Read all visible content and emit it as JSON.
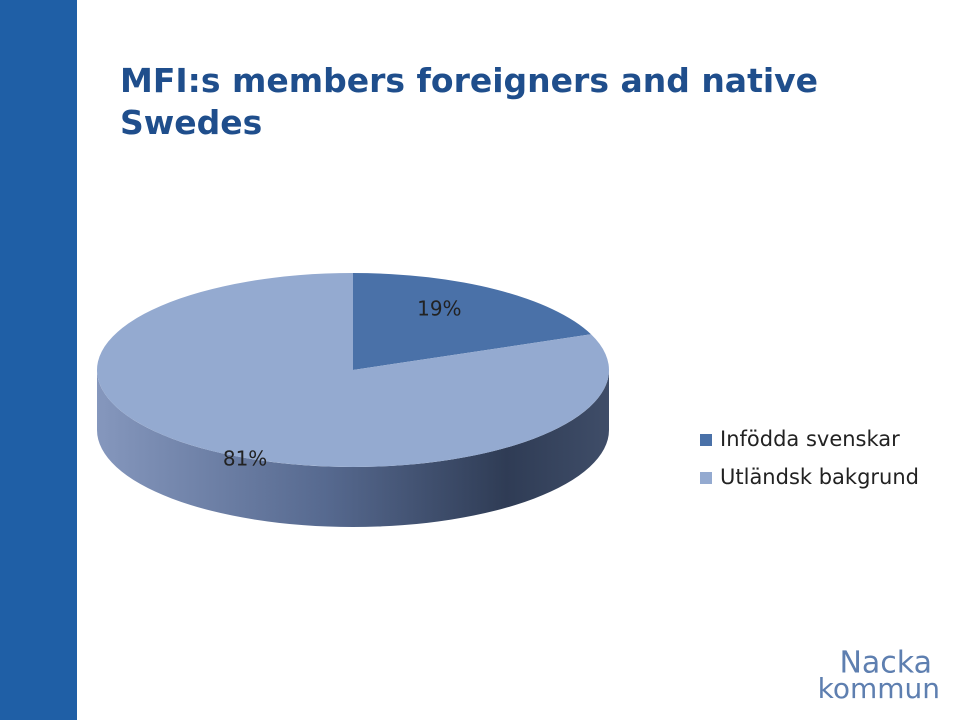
{
  "chart_data": {
    "type": "pie",
    "title": "MFI:s members foreigners and native Swedes",
    "categories": [
      "Infödda svenskar",
      "Utländsk bakgrund"
    ],
    "values": [
      19,
      81
    ],
    "value_labels": [
      "19%",
      "81%"
    ],
    "colors": [
      "#4a71a8",
      "#94aad0"
    ],
    "legend": "right"
  },
  "logo": [
    "Nacka",
    "kommun"
  ]
}
